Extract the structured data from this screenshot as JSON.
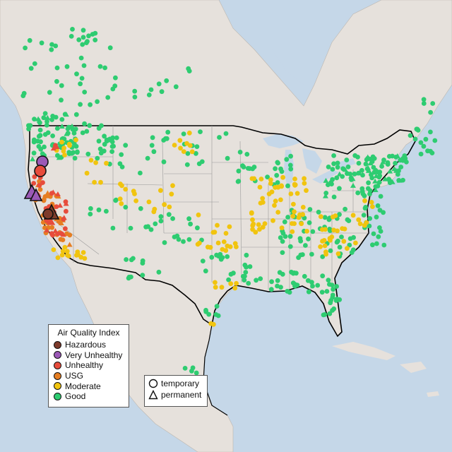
{
  "legend": {
    "title": "Air Quality Index",
    "categories": [
      {
        "label": "Hazardous",
        "color": "#7e3b2b"
      },
      {
        "label": "Very Unhealthy",
        "color": "#9b59b6"
      },
      {
        "label": "Unhealthy",
        "color": "#e74c3c"
      },
      {
        "label": "USG",
        "color": "#e67e22"
      },
      {
        "label": "Moderate",
        "color": "#f1c40f"
      },
      {
        "label": "Good",
        "color": "#2ecc71"
      }
    ]
  },
  "type_legend": {
    "temporary": "temporary",
    "permanent": "permanent"
  },
  "colors": {
    "water": "#c5d7e8",
    "land": "#e6e1dc",
    "state_border": "#9a9a9a",
    "country_border": "#000000"
  }
}
